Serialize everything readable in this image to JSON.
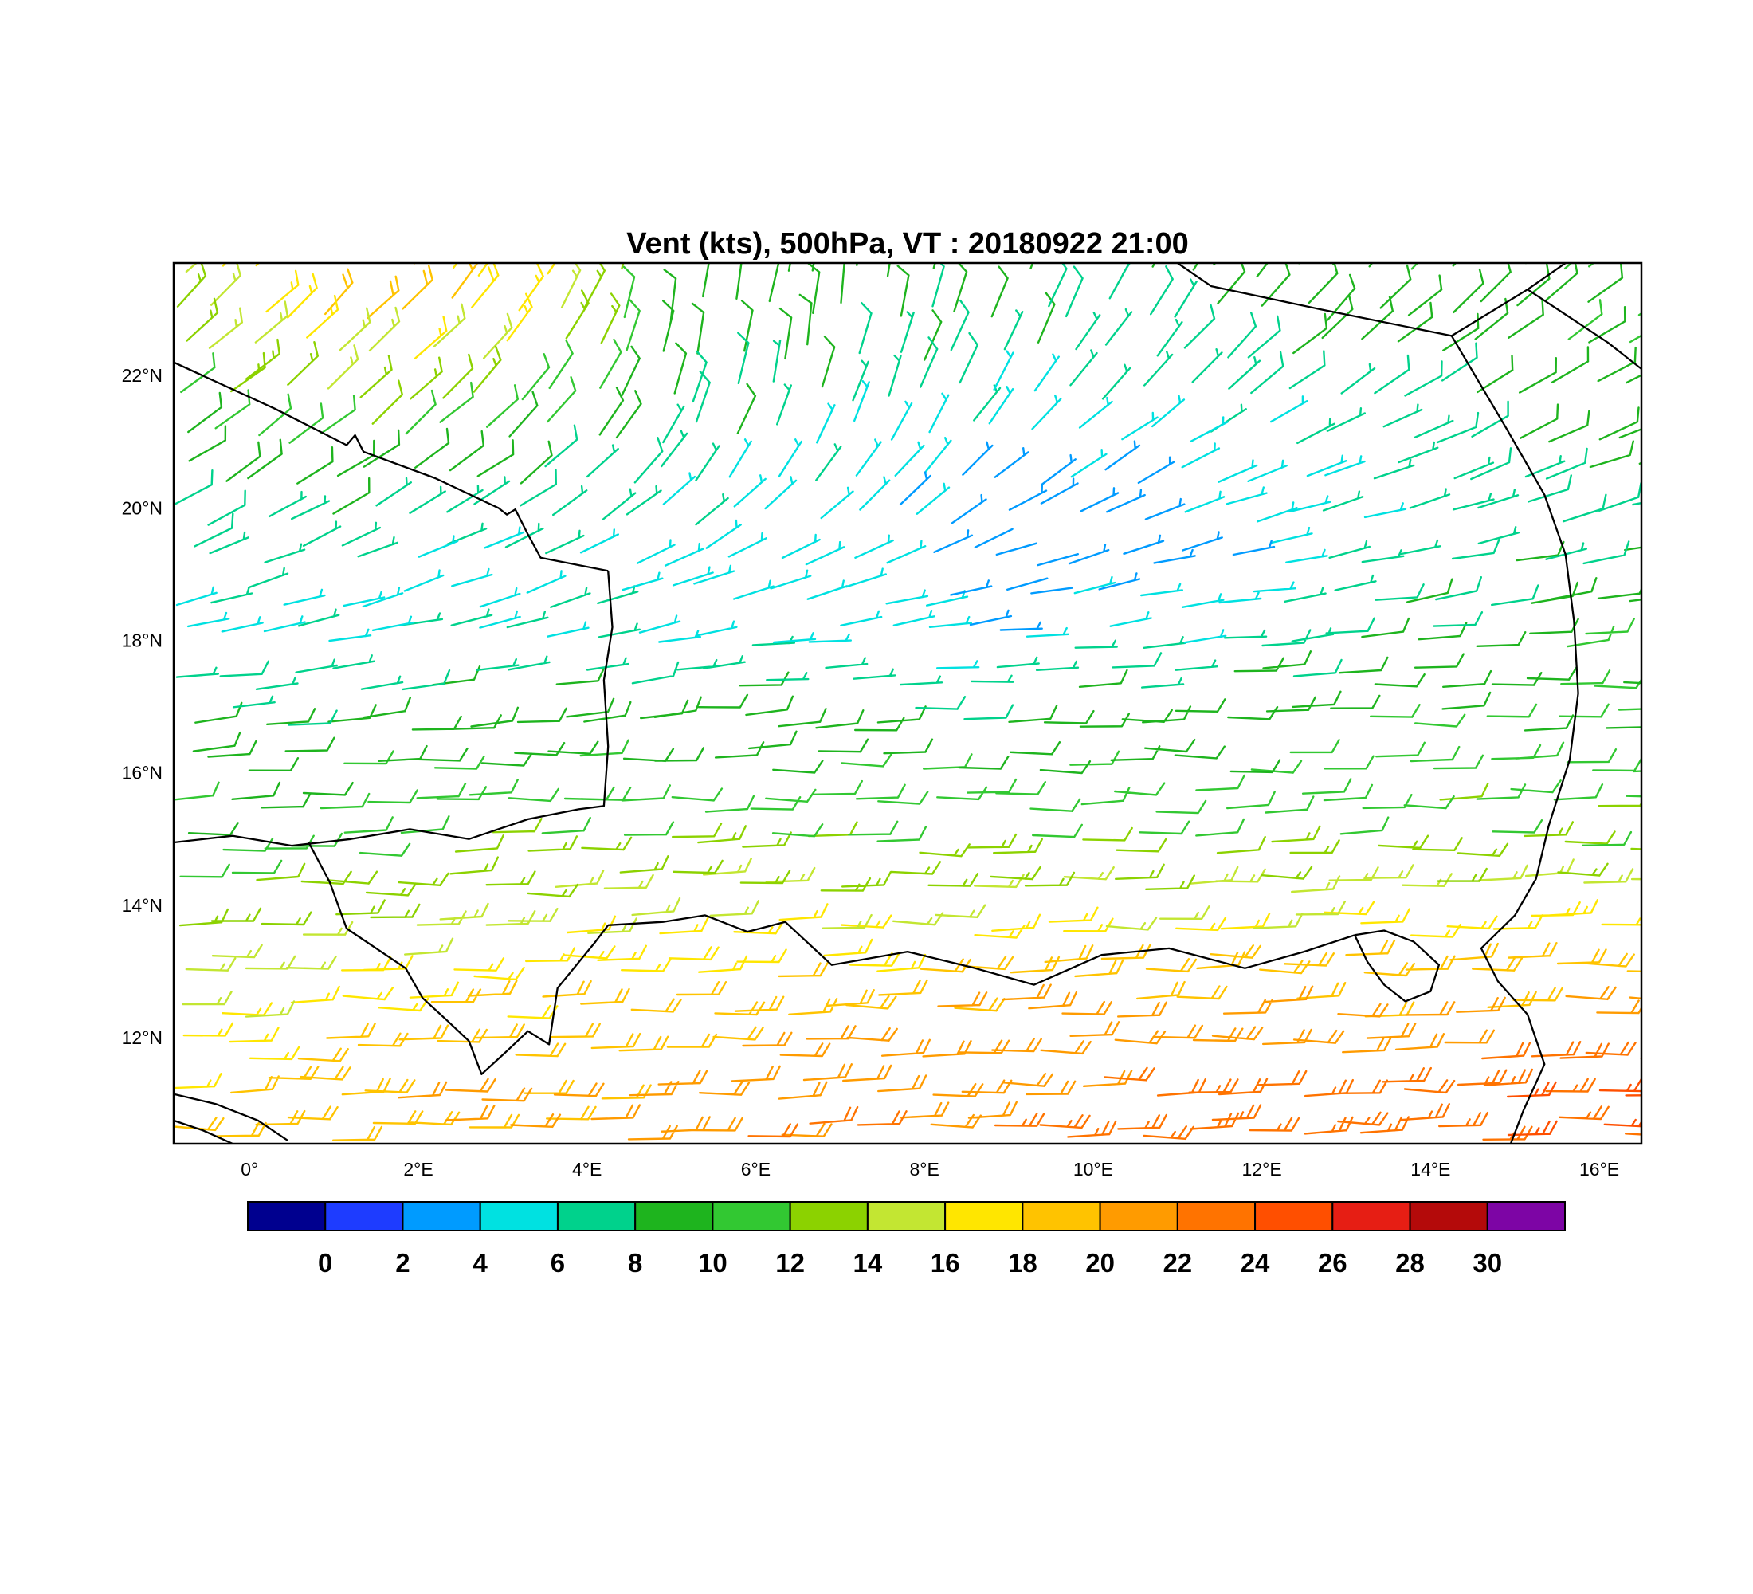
{
  "title": "Vent (kts), 500hPa, VT : 20180922  21:00",
  "axes": {
    "lat_ticks": [
      {
        "v": 22,
        "label": "22°N"
      },
      {
        "v": 20,
        "label": "20°N"
      },
      {
        "v": 18,
        "label": "18°N"
      },
      {
        "v": 16,
        "label": "16°N"
      },
      {
        "v": 14,
        "label": "14°N"
      },
      {
        "v": 12,
        "label": "12°N"
      }
    ],
    "lon_ticks": [
      {
        "v": 0,
        "label": "0°"
      },
      {
        "v": 2,
        "label": "2°E"
      },
      {
        "v": 4,
        "label": "4°E"
      },
      {
        "v": 6,
        "label": "6°E"
      },
      {
        "v": 8,
        "label": "8°E"
      },
      {
        "v": 10,
        "label": "10°E"
      },
      {
        "v": 12,
        "label": "12°E"
      },
      {
        "v": 14,
        "label": "14°E"
      },
      {
        "v": 16,
        "label": "16°E"
      }
    ]
  },
  "chart_data": {
    "type": "wind_barbs",
    "variable": "Vent",
    "units": "kts",
    "level": "500hPa",
    "valid_time": "20180922 21:00",
    "lon_range": [
      -0.9,
      16.5
    ],
    "lat_range": [
      10.4,
      23.7
    ],
    "colorbar": {
      "levels": [
        0,
        2,
        4,
        6,
        8,
        10,
        12,
        14,
        16,
        18,
        20,
        22,
        24,
        26,
        28,
        30
      ],
      "labels": [
        "0",
        "2",
        "4",
        "6",
        "8",
        "10",
        "12",
        "14",
        "16",
        "18",
        "20",
        "22",
        "24",
        "26",
        "28",
        "30"
      ],
      "colors": [
        "#00008f",
        "#1e3cff",
        "#009bff",
        "#00e1e1",
        "#00d28c",
        "#1eb41e",
        "#32c832",
        "#8cd200",
        "#c3e632",
        "#ffe600",
        "#ffc300",
        "#ff9b00",
        "#ff7300",
        "#ff4f00",
        "#e61e14",
        "#b40a0a",
        "#7d05a5"
      ]
    },
    "grid": {
      "lons": [
        -1,
        1,
        3,
        5,
        7,
        9,
        11,
        13,
        15,
        17
      ],
      "lats": [
        10,
        11,
        12,
        13,
        14,
        15,
        16,
        17,
        18,
        19,
        20,
        21,
        22,
        23,
        24
      ],
      "speed_kts": [
        [
          20,
          20,
          21,
          22,
          22,
          23,
          23,
          24,
          24,
          24
        ],
        [
          18,
          20,
          20,
          21,
          22,
          22,
          23,
          23,
          24,
          24
        ],
        [
          16,
          18,
          19,
          20,
          20,
          21,
          21,
          21,
          21,
          22
        ],
        [
          14,
          16,
          17,
          18,
          18,
          19,
          19,
          19,
          20,
          20
        ],
        [
          12,
          13,
          14,
          15,
          15,
          15,
          15,
          16,
          16,
          16
        ],
        [
          10,
          11,
          12,
          12,
          12,
          12,
          12,
          12,
          12,
          12
        ],
        [
          9,
          10,
          10,
          10,
          10,
          10,
          10,
          11,
          11,
          11
        ],
        [
          8,
          8,
          9,
          9,
          8,
          8,
          9,
          10,
          10,
          10
        ],
        [
          6,
          6,
          6,
          6,
          5,
          5,
          6,
          8,
          9,
          10
        ],
        [
          6,
          6,
          5,
          5,
          4,
          2,
          4,
          6,
          8,
          9
        ],
        [
          8,
          8,
          7,
          6,
          5,
          2,
          4,
          6,
          7,
          8
        ],
        [
          10,
          11,
          10,
          8,
          6,
          5,
          5,
          7,
          8,
          9
        ],
        [
          12,
          15,
          14,
          9,
          8,
          7,
          7,
          8,
          9,
          10
        ],
        [
          14,
          19,
          18,
          10,
          9,
          8,
          8,
          9,
          10,
          11
        ],
        [
          15,
          19,
          17,
          11,
          10,
          9,
          9,
          10,
          11,
          12
        ]
      ],
      "dir_from_deg": [
        [
          90,
          90,
          90,
          90,
          90,
          90,
          90,
          90,
          90,
          90
        ],
        [
          90,
          90,
          90,
          90,
          90,
          90,
          90,
          90,
          90,
          90
        ],
        [
          90,
          90,
          90,
          90,
          90,
          90,
          90,
          90,
          90,
          90
        ],
        [
          90,
          90,
          90,
          90,
          90,
          90,
          90,
          90,
          90,
          90
        ],
        [
          90,
          90,
          90,
          90,
          90,
          90,
          90,
          90,
          90,
          90
        ],
        [
          90,
          90,
          90,
          90,
          90,
          90,
          90,
          90,
          90,
          90
        ],
        [
          88,
          88,
          90,
          90,
          90,
          90,
          90,
          90,
          90,
          90
        ],
        [
          85,
          85,
          85,
          85,
          88,
          90,
          90,
          90,
          90,
          90
        ],
        [
          80,
          80,
          80,
          80,
          85,
          85,
          85,
          85,
          85,
          85
        ],
        [
          72,
          70,
          68,
          65,
          70,
          75,
          80,
          80,
          80,
          80
        ],
        [
          62,
          60,
          58,
          45,
          45,
          60,
          70,
          75,
          75,
          75
        ],
        [
          55,
          52,
          48,
          25,
          20,
          45,
          60,
          65,
          65,
          65
        ],
        [
          50,
          48,
          42,
          15,
          12,
          30,
          45,
          55,
          60,
          60
        ],
        [
          45,
          45,
          38,
          10,
          8,
          20,
          35,
          45,
          50,
          55
        ],
        [
          45,
          45,
          35,
          10,
          5,
          15,
          30,
          40,
          45,
          50
        ]
      ]
    },
    "map_borders": [
      [
        [
          -0.9,
          22.2
        ],
        [
          0.3,
          21.5
        ],
        [
          1.15,
          20.95
        ],
        [
          1.25,
          21.1
        ],
        [
          1.35,
          20.85
        ],
        [
          2.2,
          20.45
        ],
        [
          2.95,
          20.0
        ],
        [
          3.05,
          19.9
        ],
        [
          3.15,
          19.98
        ],
        [
          3.3,
          19.6
        ],
        [
          3.45,
          19.25
        ],
        [
          4.25,
          19.05
        ]
      ],
      [
        [
          4.25,
          19.05
        ],
        [
          4.3,
          18.2
        ],
        [
          4.2,
          17.4
        ],
        [
          4.25,
          16.4
        ],
        [
          4.2,
          15.5
        ],
        [
          3.9,
          15.45
        ],
        [
          3.3,
          15.3
        ],
        [
          2.6,
          15.0
        ],
        [
          1.9,
          15.15
        ],
        [
          1.2,
          15.0
        ],
        [
          0.5,
          14.9
        ],
        [
          -0.2,
          15.05
        ],
        [
          -0.9,
          14.95
        ]
      ],
      [
        [
          0.7,
          14.95
        ],
        [
          0.95,
          14.35
        ],
        [
          1.15,
          13.65
        ],
        [
          1.85,
          13.05
        ],
        [
          2.05,
          12.6
        ],
        [
          2.35,
          12.25
        ],
        [
          2.6,
          11.95
        ],
        [
          2.75,
          11.45
        ],
        [
          3.05,
          11.8
        ],
        [
          3.3,
          12.1
        ],
        [
          3.55,
          11.9
        ],
        [
          3.65,
          12.75
        ],
        [
          4.1,
          13.45
        ],
        [
          4.25,
          13.7
        ]
      ],
      [
        [
          4.25,
          13.7
        ],
        [
          4.9,
          13.75
        ],
        [
          5.4,
          13.85
        ],
        [
          5.9,
          13.6
        ],
        [
          6.35,
          13.75
        ],
        [
          6.9,
          13.1
        ],
        [
          7.8,
          13.3
        ],
        [
          8.6,
          13.05
        ],
        [
          9.3,
          12.8
        ],
        [
          10.1,
          13.25
        ],
        [
          10.9,
          13.35
        ],
        [
          11.8,
          13.05
        ],
        [
          12.5,
          13.3
        ],
        [
          13.1,
          13.55
        ]
      ],
      [
        [
          13.1,
          13.55
        ],
        [
          13.45,
          13.62
        ],
        [
          13.8,
          13.45
        ],
        [
          14.1,
          13.1
        ],
        [
          14.0,
          12.7
        ],
        [
          13.7,
          12.55
        ],
        [
          13.45,
          12.8
        ],
        [
          13.25,
          13.15
        ],
        [
          13.1,
          13.55
        ]
      ],
      [
        [
          11.0,
          23.7
        ],
        [
          11.4,
          23.35
        ],
        [
          12.7,
          23.0
        ],
        [
          14.25,
          22.6
        ]
      ],
      [
        [
          14.25,
          22.6
        ],
        [
          15.15,
          23.3
        ],
        [
          15.6,
          23.7
        ]
      ],
      [
        [
          15.15,
          23.3
        ],
        [
          16.1,
          22.5
        ],
        [
          16.5,
          22.1
        ]
      ],
      [
        [
          14.25,
          22.6
        ],
        [
          14.9,
          21.2
        ],
        [
          15.35,
          20.2
        ],
        [
          15.6,
          19.3
        ],
        [
          15.7,
          18.3
        ],
        [
          15.75,
          17.2
        ],
        [
          15.65,
          16.2
        ],
        [
          15.4,
          15.2
        ],
        [
          15.25,
          14.4
        ],
        [
          15.0,
          13.85
        ],
        [
          14.6,
          13.35
        ],
        [
          14.8,
          12.85
        ],
        [
          15.15,
          12.35
        ],
        [
          15.35,
          11.6
        ],
        [
          15.1,
          10.9
        ],
        [
          14.95,
          10.4
        ]
      ],
      [
        [
          -0.9,
          11.15
        ],
        [
          -0.4,
          11.0
        ],
        [
          0.1,
          10.75
        ],
        [
          0.45,
          10.45
        ]
      ],
      [
        [
          -0.9,
          10.75
        ],
        [
          -0.55,
          10.6
        ],
        [
          -0.2,
          10.4
        ]
      ]
    ]
  }
}
